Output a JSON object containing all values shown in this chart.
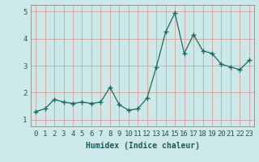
{
  "x": [
    0,
    1,
    2,
    3,
    4,
    5,
    6,
    7,
    8,
    9,
    10,
    11,
    12,
    13,
    14,
    15,
    16,
    17,
    18,
    19,
    20,
    21,
    22,
    23
  ],
  "y": [
    1.3,
    1.4,
    1.75,
    1.65,
    1.6,
    1.65,
    1.6,
    1.65,
    2.2,
    1.55,
    1.35,
    1.4,
    1.8,
    2.95,
    4.25,
    4.95,
    3.45,
    4.15,
    3.55,
    3.45,
    3.05,
    2.95,
    2.85,
    3.2
  ],
  "line_color": "#1a6b5a",
  "marker": "+",
  "marker_size": 4,
  "marker_lw": 1.0,
  "bg_color": "#cde8e8",
  "grid_color": "#d4a0a0",
  "xlabel": "Humidex (Indice chaleur)",
  "ylim": [
    0.75,
    5.25
  ],
  "xlim": [
    -0.5,
    23.5
  ],
  "yticks": [
    1,
    2,
    3,
    4,
    5
  ],
  "xtick_labels": [
    "0",
    "1",
    "2",
    "3",
    "4",
    "5",
    "6",
    "7",
    "8",
    "9",
    "10",
    "11",
    "12",
    "13",
    "14",
    "15",
    "16",
    "17",
    "18",
    "19",
    "20",
    "21",
    "22",
    "23"
  ],
  "xlabel_fontsize": 7,
  "tick_fontsize": 6.5
}
